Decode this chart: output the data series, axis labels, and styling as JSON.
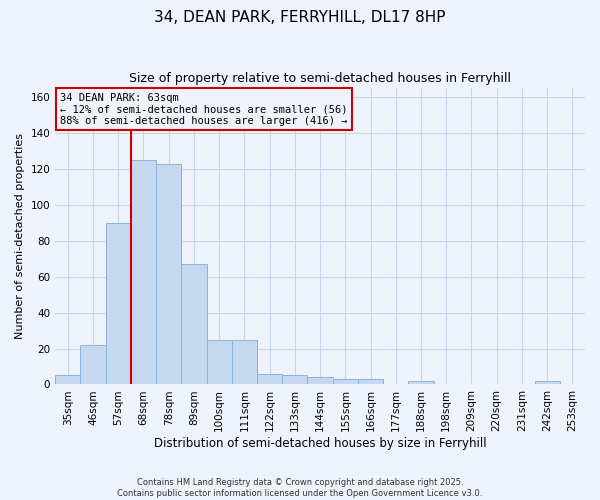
{
  "title1": "34, DEAN PARK, FERRYHILL, DL17 8HP",
  "title2": "Size of property relative to semi-detached houses in Ferryhill",
  "xlabel": "Distribution of semi-detached houses by size in Ferryhill",
  "ylabel": "Number of semi-detached properties",
  "categories": [
    "35sqm",
    "46sqm",
    "57sqm",
    "68sqm",
    "78sqm",
    "89sqm",
    "100sqm",
    "111sqm",
    "122sqm",
    "133sqm",
    "144sqm",
    "155sqm",
    "166sqm",
    "177sqm",
    "188sqm",
    "198sqm",
    "209sqm",
    "220sqm",
    "231sqm",
    "242sqm",
    "253sqm"
  ],
  "values": [
    5,
    22,
    90,
    125,
    123,
    67,
    25,
    25,
    6,
    5,
    4,
    3,
    3,
    0,
    2,
    0,
    0,
    0,
    0,
    2,
    0
  ],
  "bar_color": "#c5d8f0",
  "bar_edgecolor": "#8ab4d8",
  "annotation_text": "34 DEAN PARK: 63sqm\n← 12% of semi-detached houses are smaller (56)\n88% of semi-detached houses are larger (416) →",
  "annotation_box_edgecolor": "#cc0000",
  "vline_x": 2.5,
  "vline_color": "#cc0000",
  "ylim": [
    0,
    165
  ],
  "yticks": [
    0,
    20,
    40,
    60,
    80,
    100,
    120,
    140,
    160
  ],
  "grid_color": "#c8d4e8",
  "background_color": "#eef2fb",
  "footer": "Contains HM Land Registry data © Crown copyright and database right 2025.\nContains public sector information licensed under the Open Government Licence v3.0.",
  "title1_fontsize": 11,
  "title2_fontsize": 9,
  "xlabel_fontsize": 8.5,
  "ylabel_fontsize": 8,
  "tick_fontsize": 7.5,
  "footer_fontsize": 6
}
